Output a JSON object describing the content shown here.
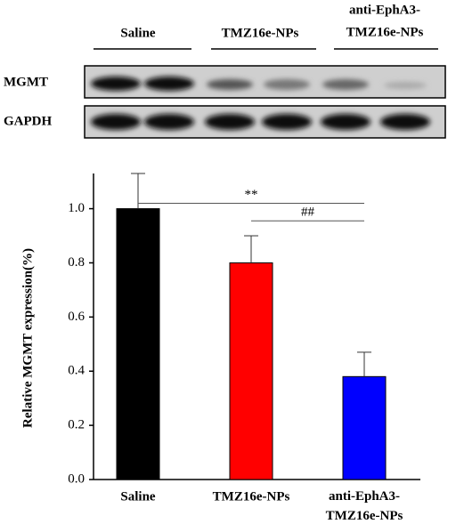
{
  "blot": {
    "groups": [
      "Saline",
      "TMZ16e-NPs",
      [
        "anti-EphA3-",
        "TMZ16e-NPs"
      ]
    ],
    "rows": [
      "MGMT",
      "GAPDH"
    ]
  },
  "chart_data": {
    "type": "bar",
    "y_label": "Relative MGMT expression(%)",
    "categories": [
      "Saline",
      "TMZ16e-NPs",
      "anti-EphA3-TMZ16e-NPs"
    ],
    "values": [
      1.0,
      0.8,
      0.38
    ],
    "errors": [
      0.13,
      0.1,
      0.09
    ],
    "colors": [
      "#000000",
      "#ff0000",
      "#0000ff"
    ],
    "ylim": [
      0,
      1.13
    ],
    "yticks": [
      {
        "value": 0,
        "label": "0.0"
      },
      0.2,
      0.4,
      0.6,
      0.8,
      {
        "value": 1,
        "label": "1.0"
      }
    ],
    "annotations": [
      {
        "text": "**",
        "from": 0,
        "to": 2,
        "y": 1.02
      },
      {
        "text": "##",
        "from": 1,
        "to": 2,
        "y": 0.955
      }
    ]
  }
}
